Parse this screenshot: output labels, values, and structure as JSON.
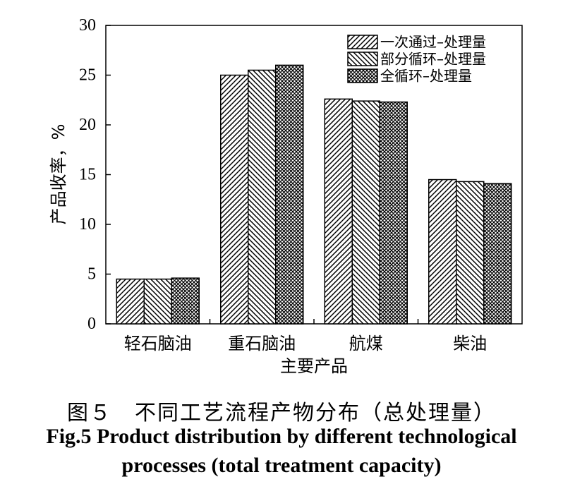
{
  "chart_data": {
    "type": "bar",
    "categories": [
      "轻石脑油",
      "重石脑油",
      "航煤",
      "柴油"
    ],
    "series": [
      {
        "name": "一次通过–处理量",
        "pattern": "diag-right",
        "values": [
          4.5,
          25.0,
          22.6,
          14.5
        ]
      },
      {
        "name": "部分循环–处理量",
        "pattern": "diag-left",
        "values": [
          4.5,
          25.5,
          22.4,
          14.3
        ]
      },
      {
        "name": "全循环–处理量",
        "pattern": "crosshatch",
        "values": [
          4.6,
          26.0,
          22.3,
          14.1
        ]
      }
    ],
    "xlabel": "主要产品",
    "ylabel": "产品收率，%",
    "ylim": [
      0,
      30
    ],
    "yticks": [
      0,
      5,
      10,
      15,
      20,
      25,
      30
    ],
    "grid": false,
    "legend_position": "top-right",
    "colors": {
      "stroke": "#000000",
      "fill": "#ffffff"
    }
  },
  "caption": {
    "zh": "图５　不同工艺流程产物分布（总处理量）",
    "en_line1": "Fig.5 Product distribution by different technological",
    "en_line2": "processes (total treatment capacity)"
  }
}
